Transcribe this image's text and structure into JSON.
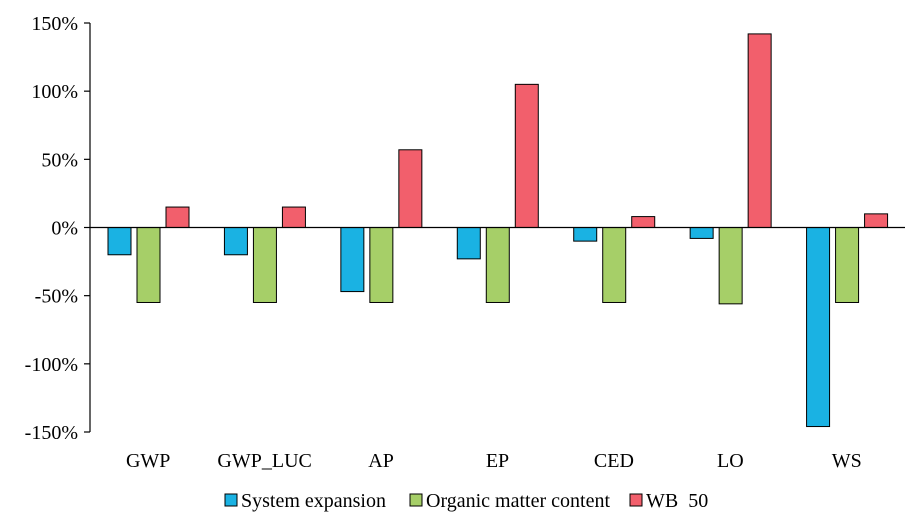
{
  "chart_data": {
    "type": "bar",
    "categories": [
      "GWP",
      "GWP_LUC",
      "AP",
      "EP",
      "CED",
      "LO",
      "WS"
    ],
    "series": [
      {
        "name": "System expansion",
        "color": "#1ab2e3",
        "values": [
          -20,
          -20,
          -47,
          -23,
          -10,
          -8,
          -146
        ]
      },
      {
        "name": "Organic matter content",
        "color": "#a6cf68",
        "values": [
          -55,
          -55,
          -55,
          -55,
          -55,
          -56,
          -55
        ]
      },
      {
        "name": "WB  50",
        "color": "#f25f6c",
        "values": [
          15,
          15,
          57,
          105,
          8,
          142,
          10
        ]
      }
    ],
    "ylim": [
      -150,
      150
    ],
    "yticks": [
      150,
      100,
      50,
      0,
      -50,
      -100,
      -150
    ],
    "ytick_labels": [
      "150%",
      "100%",
      "50%",
      "0%",
      "-50%",
      "-100%",
      "-150%"
    ],
    "grid": false,
    "legend_position": "bottom"
  }
}
